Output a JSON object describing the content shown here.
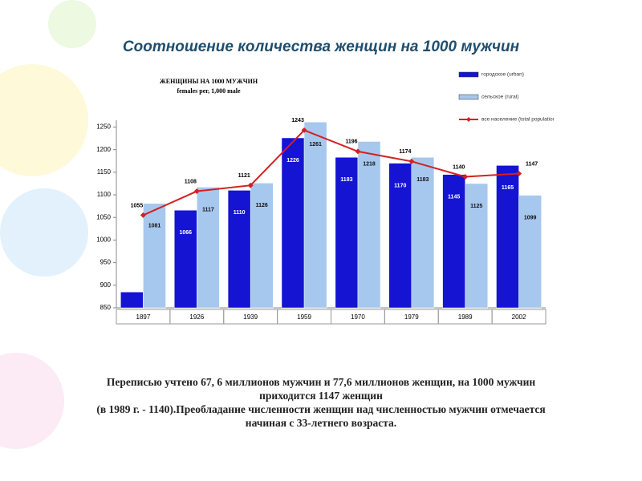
{
  "header": {
    "title": "Соотношение количества женщин на 1000 мужчин"
  },
  "chart_data": {
    "type": "bar",
    "title": "ЖЕНЩИНЫ НА 1000 МУЖЧИН",
    "subtitle": "females per, 1,000 male",
    "categories": [
      "1897",
      "1926",
      "1939",
      "1959",
      "1970",
      "1979",
      "1989",
      "2002"
    ],
    "series": [
      {
        "name": "городское (urban)",
        "color": "#1414d2",
        "values": [
          885,
          1066,
          1110,
          1226,
          1183,
          1170,
          1145,
          1165
        ]
      },
      {
        "name": "сельское (rural)",
        "color": "#a6c8ee",
        "values": [
          1081,
          1117,
          1126,
          1261,
          1218,
          1183,
          1125,
          1099
        ]
      },
      {
        "name": "все население (total population)",
        "type": "line",
        "color": "#d42020",
        "values": [
          1055,
          1108,
          1121,
          1243,
          1196,
          1174,
          1140,
          1147
        ]
      }
    ],
    "ylim": [
      850,
      1265
    ],
    "yticks": [
      850,
      900,
      950,
      1000,
      1050,
      1100,
      1150,
      1200,
      1250
    ],
    "legend": "top-right"
  },
  "footer": {
    "paragraphs": [
      "Переписью учтено 67, 6 миллионов мужчин и 77,6 миллионов женщин, на 1000 мужчин приходится 1147 женщин",
      "(в 1989 г. - 1140).Преобладание численности женщин над численностью мужчин отмечается начиная с 33-летнего возраста."
    ]
  }
}
